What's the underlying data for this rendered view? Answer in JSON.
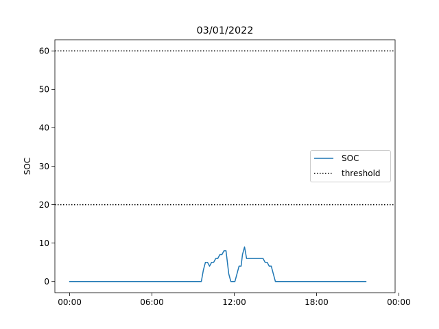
{
  "chart_data": {
    "type": "line",
    "title": "03/01/2022",
    "xlabel": "",
    "ylabel": "SOC",
    "x_unit": "hours",
    "xlim": [
      -1.08,
      23.73
    ],
    "ylim": [
      -2.9,
      62.9
    ],
    "x_ticks": [
      {
        "value": 0,
        "label": "00:00"
      },
      {
        "value": 6,
        "label": "06:00"
      },
      {
        "value": 12,
        "label": "12:00"
      },
      {
        "value": 18,
        "label": "18:00"
      },
      {
        "value": 24,
        "label": "00:00"
      }
    ],
    "y_ticks": [
      {
        "value": 0,
        "label": "0"
      },
      {
        "value": 10,
        "label": "10"
      },
      {
        "value": 20,
        "label": "20"
      },
      {
        "value": 30,
        "label": "30"
      },
      {
        "value": 40,
        "label": "40"
      },
      {
        "value": 50,
        "label": "50"
      },
      {
        "value": 60,
        "label": "60"
      }
    ],
    "grid": false,
    "legend": {
      "placement": "center-right"
    },
    "series": [
      {
        "name": "SOC",
        "style": "solid",
        "color": "#1f77b4",
        "x": [
          0,
          9.6,
          9.75,
          9.9,
          10.05,
          10.2,
          10.35,
          10.5,
          10.65,
          10.8,
          10.95,
          11.1,
          11.25,
          11.4,
          11.5,
          11.6,
          11.75,
          11.9,
          12.05,
          12.2,
          12.35,
          12.5,
          12.6,
          12.75,
          12.9,
          13.05,
          13.5,
          14.0,
          14.1,
          14.25,
          14.4,
          14.55,
          14.7,
          14.85,
          15.0,
          21.6
        ],
        "y": [
          0,
          0,
          3,
          5,
          5,
          4,
          5,
          5,
          6,
          6,
          7,
          7,
          8,
          8,
          5,
          2,
          0,
          0,
          0,
          2,
          4,
          4,
          7,
          9,
          6,
          6,
          6,
          6,
          6,
          5,
          5,
          4,
          4,
          2,
          0,
          0
        ]
      },
      {
        "name": "threshold",
        "style": "dotted",
        "color": "#000000",
        "lines": [
          60,
          20
        ]
      }
    ]
  }
}
